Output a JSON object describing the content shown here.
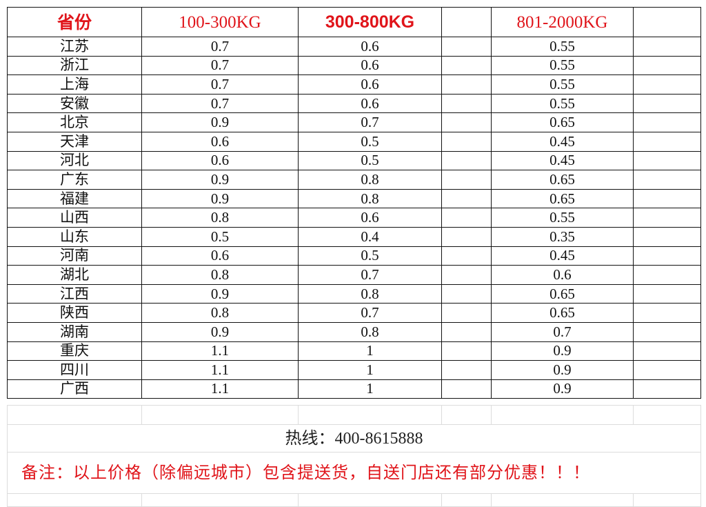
{
  "headers": [
    "省份",
    "100-300KG",
    "300-800KG",
    "801-2000KG"
  ],
  "rows": [
    {
      "province": "江苏",
      "c1": "0.7",
      "c2": "0.6",
      "c3": "0.55"
    },
    {
      "province": "浙江",
      "c1": "0.7",
      "c2": "0.6",
      "c3": "0.55"
    },
    {
      "province": "上海",
      "c1": "0.7",
      "c2": "0.6",
      "c3": "0.55"
    },
    {
      "province": "安徽",
      "c1": "0.7",
      "c2": "0.6",
      "c3": "0.55"
    },
    {
      "province": "北京",
      "c1": "0.9",
      "c2": "0.7",
      "c3": "0.65"
    },
    {
      "province": "天津",
      "c1": "0.6",
      "c2": "0.5",
      "c3": "0.45"
    },
    {
      "province": "河北",
      "c1": "0.6",
      "c2": "0.5",
      "c3": "0.45"
    },
    {
      "province": "广东",
      "c1": "0.9",
      "c2": "0.8",
      "c3": "0.65"
    },
    {
      "province": "福建",
      "c1": "0.9",
      "c2": "0.8",
      "c3": "0.65"
    },
    {
      "province": "山西",
      "c1": "0.8",
      "c2": "0.6",
      "c3": "0.55"
    },
    {
      "province": "山东",
      "c1": "0.5",
      "c2": "0.4",
      "c3": "0.35"
    },
    {
      "province": "河南",
      "c1": "0.6",
      "c2": "0.5",
      "c3": "0.45"
    },
    {
      "province": "湖北",
      "c1": "0.8",
      "c2": "0.7",
      "c3": "0.6"
    },
    {
      "province": "江西",
      "c1": "0.9",
      "c2": "0.8",
      "c3": "0.65"
    },
    {
      "province": "陕西",
      "c1": "0.8",
      "c2": "0.7",
      "c3": "0.65"
    },
    {
      "province": "湖南",
      "c1": "0.9",
      "c2": "0.8",
      "c3": "0.7"
    },
    {
      "province": "重庆",
      "c1": "1.1",
      "c2": "1",
      "c3": "0.9"
    },
    {
      "province": "四川",
      "c1": "1.1",
      "c2": "1",
      "c3": "0.9"
    },
    {
      "province": "广西",
      "c1": "1.1",
      "c2": "1",
      "c3": "0.9"
    }
  ],
  "hotline": "热线：400-8615888",
  "note": "备注：以上价格（除偏远城市）包含提送货，自送门店还有部分优惠！！！",
  "colors": {
    "header_text": "#e0141a",
    "note_text": "#e0141a",
    "grid": "#111111"
  }
}
